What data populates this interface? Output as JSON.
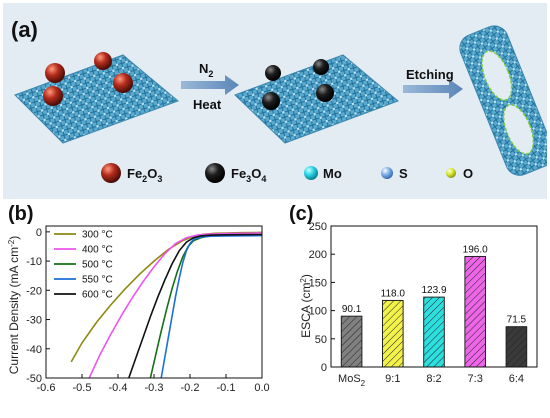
{
  "panel_a": {
    "label": "(a)",
    "step1_top": "N",
    "step1_top_sub": "2",
    "step1_bottom": "Heat",
    "step2": "Etching",
    "legend": [
      {
        "name": "Fe",
        "sub1": "2",
        "mid": "O",
        "sub2": "3",
        "color": "#a0281c"
      },
      {
        "name": "Fe",
        "sub1": "3",
        "mid": "O",
        "sub2": "4",
        "color": "#151515"
      },
      {
        "name": "Mo",
        "color": "#27d3e6"
      },
      {
        "name": "S",
        "color": "#7fb0e8"
      },
      {
        "name": "O",
        "color": "#d8e830"
      }
    ]
  },
  "chart_data": [
    {
      "type": "line",
      "panel_label": "(b)",
      "xlabel": "",
      "ylabel": "Current Density (mA cm",
      "ylabel_sup": "-2",
      "ylabel_end": ")",
      "xlim": [
        -0.6,
        0.0
      ],
      "ylim": [
        -50,
        2
      ],
      "xticks": [
        "-0.6",
        "-0.5",
        "-0.4",
        "-0.3",
        "-0.2",
        "-0.1",
        "0.0"
      ],
      "yticks": [
        "0",
        "-10",
        "-20",
        "-30",
        "-40",
        "-50"
      ],
      "legend_position": "top-left",
      "series": [
        {
          "name": "300 °C",
          "color": "#8c8a10",
          "x": [
            -0.53,
            -0.5,
            -0.46,
            -0.42,
            -0.38,
            -0.34,
            -0.3,
            -0.26,
            -0.22,
            -0.19,
            -0.16,
            -0.13,
            -0.1,
            -0.06,
            0.0
          ],
          "y": [
            -44.5,
            -38,
            -31,
            -25,
            -19.5,
            -14.5,
            -10,
            -6,
            -3,
            -1.5,
            -0.8,
            -0.5,
            -0.4,
            -0.3,
            -0.2
          ]
        },
        {
          "name": "400 °C",
          "color": "#ee55ee",
          "x": [
            -0.48,
            -0.45,
            -0.42,
            -0.39,
            -0.36,
            -0.33,
            -0.3,
            -0.27,
            -0.24,
            -0.21,
            -0.18,
            -0.15,
            -0.1,
            0.0
          ],
          "y": [
            -50,
            -42,
            -35,
            -28.5,
            -22.5,
            -17,
            -12,
            -7.5,
            -4,
            -2,
            -1.1,
            -0.8,
            -0.6,
            -0.4
          ]
        },
        {
          "name": "500 °C",
          "color": "#157015",
          "x": [
            -0.31,
            -0.295,
            -0.28,
            -0.265,
            -0.25,
            -0.235,
            -0.22,
            -0.205,
            -0.19,
            -0.17,
            -0.15,
            -0.12,
            -0.08,
            0.0
          ],
          "y": [
            -50,
            -42,
            -34,
            -26.5,
            -19.5,
            -13.5,
            -8.5,
            -5,
            -3,
            -2,
            -1.5,
            -1.2,
            -1.1,
            -1.0
          ]
        },
        {
          "name": "550 °C",
          "color": "#1c6fd6",
          "x": [
            -0.28,
            -0.27,
            -0.26,
            -0.25,
            -0.24,
            -0.23,
            -0.22,
            -0.21,
            -0.2,
            -0.19,
            -0.17,
            -0.14,
            -0.1,
            0.0
          ],
          "y": [
            -50,
            -43,
            -36,
            -29,
            -22,
            -16,
            -10.5,
            -6.5,
            -4,
            -2.6,
            -1.8,
            -1.5,
            -1.4,
            -1.3
          ]
        },
        {
          "name": "600 °C",
          "color": "#111111",
          "x": [
            -0.37,
            -0.35,
            -0.33,
            -0.31,
            -0.29,
            -0.27,
            -0.25,
            -0.23,
            -0.21,
            -0.19,
            -0.17,
            -0.14,
            -0.1,
            0.0
          ],
          "y": [
            -50,
            -43,
            -36,
            -29,
            -22.5,
            -16.5,
            -11,
            -6.5,
            -3.5,
            -2,
            -1.4,
            -1.1,
            -1,
            -0.9
          ]
        }
      ]
    },
    {
      "type": "bar",
      "panel_label": "(c)",
      "ylabel": "ESCA (cm",
      "ylabel_sup": "2",
      "ylabel_end": ")",
      "xlabel": "",
      "ylim": [
        0,
        250
      ],
      "yticks": [
        "0",
        "50",
        "100",
        "150",
        "200",
        "250"
      ],
      "categories": [
        "MoS",
        "9:1",
        "8:2",
        "7:3",
        "6:4"
      ],
      "category_subs": [
        "2",
        "",
        "",
        "",
        ""
      ],
      "values": [
        90.1,
        118.0,
        123.9,
        196.0,
        71.5
      ],
      "value_labels": [
        "90.1",
        "118.0",
        "123.9",
        "196.0",
        "71.5"
      ],
      "colors": [
        "#808080",
        "#f2f24a",
        "#2ce0e0",
        "#ee66e8",
        "#3a3a3a"
      ]
    }
  ]
}
